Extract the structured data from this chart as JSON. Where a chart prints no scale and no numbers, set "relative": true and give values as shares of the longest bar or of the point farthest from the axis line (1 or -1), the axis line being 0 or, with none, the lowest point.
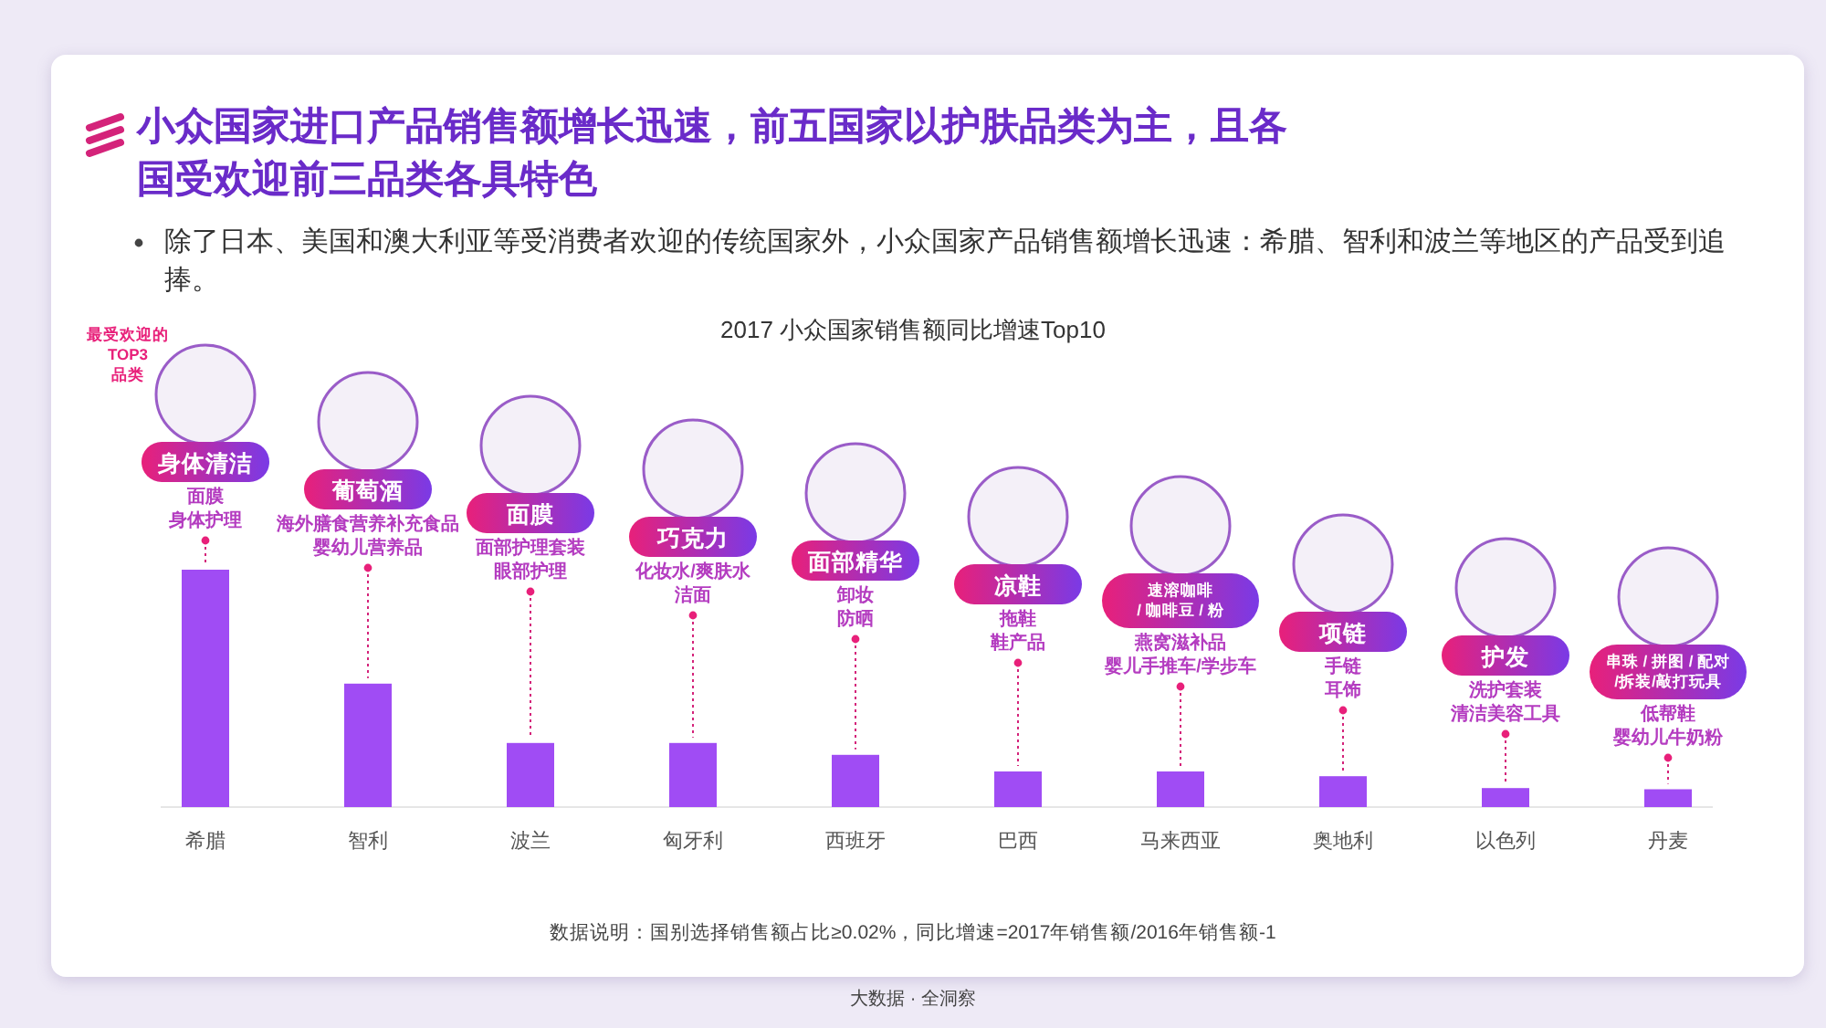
{
  "chart_data": {
    "type": "bar",
    "relative": true,
    "title": "小众国家进口产品销售额增长迅速，前五国家以护肤品类为主，且各国受欢迎前三品类各具特色",
    "subtitle": "除了日本、美国和澳大利亚等受消费者欢迎的传统国家外，小众国家产品销售额增长迅速：希腊、智利和波兰等地区的产品受到追捧。",
    "categories": [
      "希腊",
      "智利",
      "波兰",
      "匈牙利",
      "西班牙",
      "巴西",
      "马来西亚",
      "奥地利",
      "以色列",
      "丹麦"
    ],
    "values": [
      1,
      0.52,
      0.27,
      0.27,
      0.22,
      0.15,
      0.15,
      0.13,
      0.08,
      0.075
    ],
    "color": "#a04cf4",
    "annotations": [
      "2017 小众国家销售额同比增速Top10",
      "最受欢迎的TOP3品类",
      "数据说明：国别选择销售额占比≥0.02%，同比增速=2017年销售额/2016年销售额-1",
      "大数据 · 全洞察",
      "身体清洁",
      "面膜",
      "身体护理",
      "葡萄酒",
      "海外膳食营养补充食品",
      "婴幼儿营养品",
      "面膜",
      "面部护理套装",
      "眼部护理",
      "巧克力",
      "化妆水/爽肤水",
      "洁面",
      "面部精华",
      "卸妆",
      "防晒",
      "凉鞋",
      "拖鞋",
      "鞋产品",
      "速溶咖啡/ 咖啡豆 / 粉",
      "燕窝滋补品",
      "婴儿手推车/学步车",
      "项链",
      "手链",
      "耳饰",
      "护发",
      "洗护套装",
      "清洁美容工具",
      "串珠 / 拼图 / 配对/拆装/敲打玩具",
      "低帮鞋",
      "婴幼儿牛奶粉"
    ]
  }
}
